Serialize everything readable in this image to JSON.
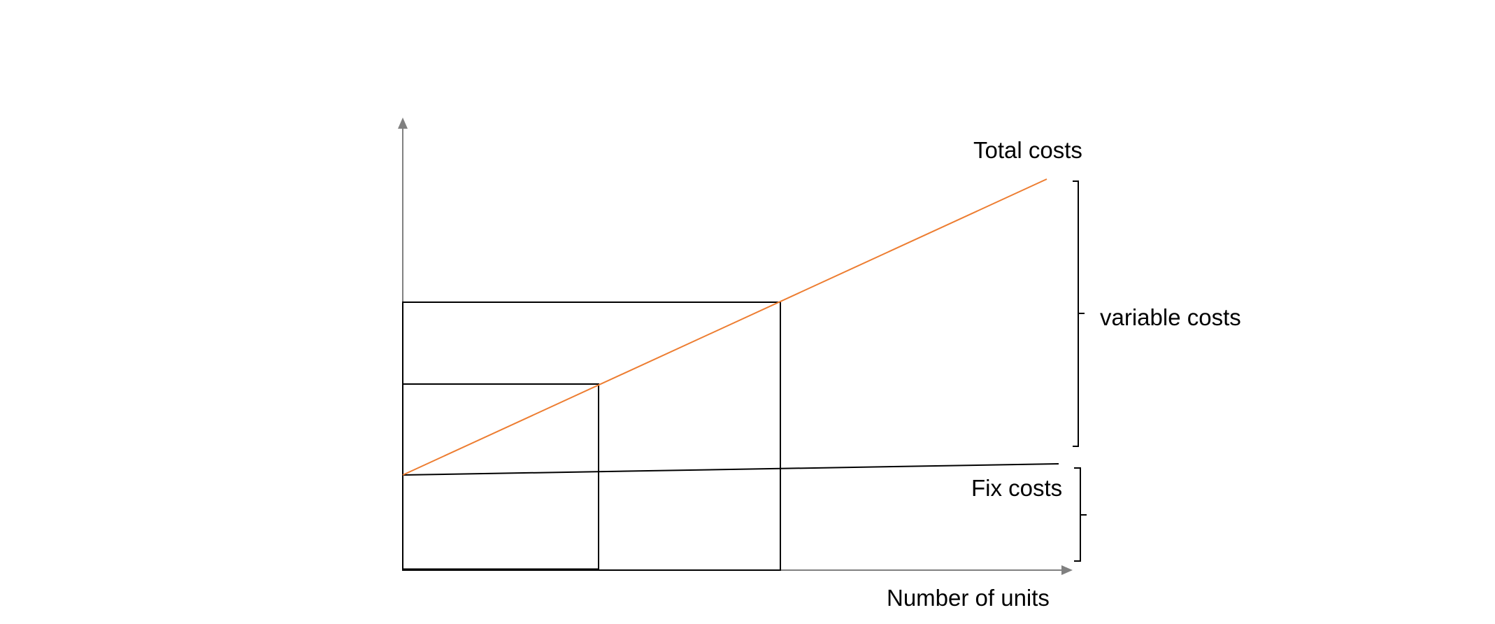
{
  "labels": {
    "total_costs": "Total costs",
    "variable_costs": "variable costs",
    "fix_costs": "Fix costs",
    "x_axis": "Number of units"
  },
  "colors": {
    "axis": "#808080",
    "total_costs_line": "#ED7D31",
    "fix_costs_line": "#000000",
    "boxes": "#000000",
    "brackets": "#000000",
    "background": "#FFFFFF"
  }
}
